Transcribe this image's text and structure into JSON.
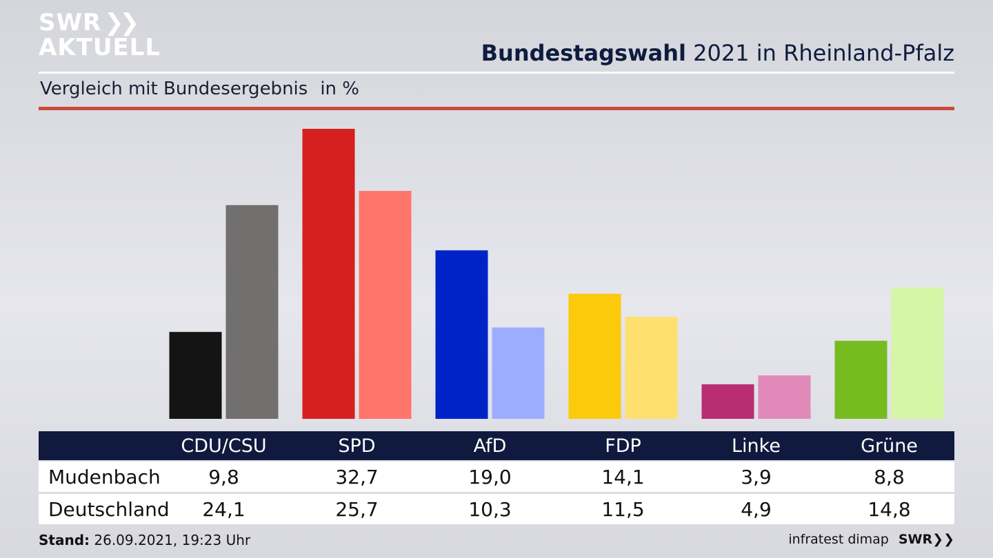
{
  "header": {
    "logo_line1": "SWR",
    "logo_line2": "AKTUELL",
    "title_bold": "Bundestagswahl",
    "title_rest": " 2021 in Rheinland-Pfalz",
    "subtitle": "Vergleich mit Bundesergebnis",
    "unit": "in %"
  },
  "chart_data": {
    "type": "bar",
    "categories": [
      "CDU/CSU",
      "SPD",
      "AfD",
      "FDP",
      "Linke",
      "Grüne"
    ],
    "series": [
      {
        "name": "Mudenbach",
        "values": [
          9.8,
          32.7,
          19.0,
          14.1,
          3.9,
          8.8
        ],
        "display": [
          "9,8",
          "32,7",
          "19,0",
          "14,1",
          "3,9",
          "8,8"
        ],
        "colors": [
          "#141414",
          "#d61f1f",
          "#0023c8",
          "#fdc90b",
          "#b92d73",
          "#76bc20"
        ]
      },
      {
        "name": "Deutschland",
        "values": [
          24.1,
          25.7,
          10.3,
          11.5,
          4.9,
          14.8
        ],
        "display": [
          "24,1",
          "25,7",
          "10,3",
          "11,5",
          "4,9",
          "14,8"
        ],
        "colors": [
          "#72706f",
          "#ff756c",
          "#9eacff",
          "#ffe06e",
          "#e18ab9",
          "#d5f6a6"
        ]
      }
    ],
    "ylim": [
      0,
      32.7
    ]
  },
  "footer": {
    "stand_label": "Stand:",
    "stand_value": " 26.09.2021, 19:23 Uhr",
    "source": "infratest dimap",
    "brand": "SWR"
  }
}
